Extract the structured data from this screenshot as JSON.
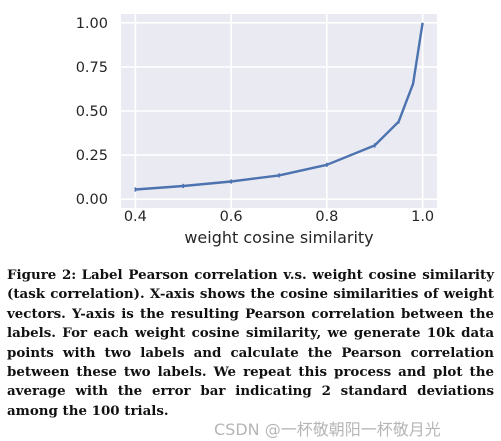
{
  "chart_data": {
    "type": "line",
    "title": "",
    "xlabel": "weight cosine similarity",
    "ylabel": "",
    "xlim": [
      0.37,
      1.03
    ],
    "ylim": [
      -0.05,
      1.05
    ],
    "x_ticks": [
      "0.4",
      "0.6",
      "0.8",
      "1.0"
    ],
    "y_ticks": [
      "0.00",
      "0.25",
      "0.50",
      "0.75",
      "1.00"
    ],
    "grid": true,
    "series": [
      {
        "color": "#4c72b0",
        "x": [
          0.4,
          0.5,
          0.6,
          0.7,
          0.8,
          0.9,
          0.95,
          0.98,
          1.0
        ],
        "y": [
          0.055,
          0.075,
          0.1,
          0.135,
          0.195,
          0.305,
          0.44,
          0.655,
          1.0
        ],
        "error_2sd": [
          0.012,
          0.012,
          0.012,
          0.012,
          0.012,
          0.012,
          0.012,
          0.012,
          0.0
        ]
      }
    ]
  },
  "caption": {
    "label": "Figure 2:",
    "text": "Label Pearson correlation v.s. weight cosine similarity (task correlation). X-axis shows the cosine similarities of weight vectors. Y-axis is the resulting Pearson correlation between the labels. For each weight cosine similarity, we generate 10k data points with two labels and calculate the Pearson correlation between these two labels. We repeat this process and plot the average with the error bar indicating 2 standard deviations among the 100 trials."
  },
  "watermark": "CSDN @一杯敬朝阳一杯敬月光"
}
